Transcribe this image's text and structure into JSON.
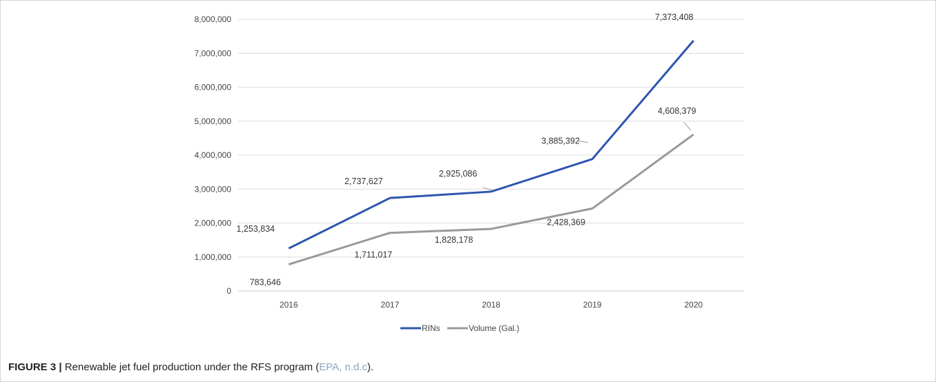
{
  "chart_data": {
    "type": "line",
    "categories": [
      "2016",
      "2017",
      "2018",
      "2019",
      "2020"
    ],
    "series": [
      {
        "name": "RINs",
        "values": [
          1253834,
          2737627,
          2925086,
          3885392,
          7373408
        ],
        "color": "#2e55b0",
        "labels": [
          "1,253,834",
          "2,737,627",
          "2,925,086",
          "3,885,392",
          "7,373,408"
        ]
      },
      {
        "name": "Volume (Gal.)",
        "values": [
          783646,
          1711017,
          1828178,
          2428369,
          4608379
        ],
        "color": "#999999",
        "labels": [
          "783,646",
          "1,711,017",
          "1,828,178",
          "2,428,369",
          "4,608,379"
        ]
      }
    ],
    "ylim": [
      0,
      8000000
    ],
    "yticks": [
      "0",
      "1,000,000",
      "2,000,000",
      "3,000,000",
      "4,000,000",
      "5,000,000",
      "6,000,000",
      "7,000,000",
      "8,000,000"
    ],
    "grid": true,
    "legend": "bottom"
  },
  "caption": {
    "label": "FIGURE 3 |",
    "text": " Renewable jet fuel production under the RFS program (",
    "citation": "EPA, n.d.c",
    "end": ")."
  }
}
